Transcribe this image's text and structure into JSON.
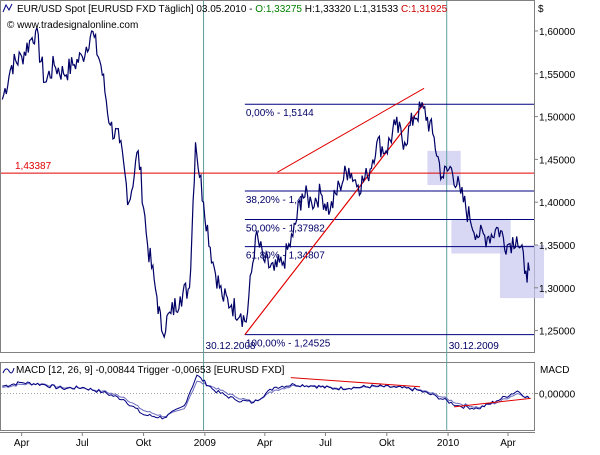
{
  "header": {
    "instrument": "EUR/USD Spot [EURUSD FXD",
    "period": "Täglich]",
    "date": "03.05.2010",
    "open_label": "O:1,33275",
    "high_label": "H:1,33320",
    "low_label": "L:1,31533",
    "close_label": "C:1,31925",
    "currency_symbol": "$"
  },
  "watermark": "© www.tradesignalonline.com",
  "colors": {
    "price_line": "#000066",
    "fib_line": "#000080",
    "red_line": "#e00000",
    "vertical_line": "#5f9ea0",
    "highlight": "#c8c8f0",
    "open_green": "#008000",
    "close_red": "#cc0000",
    "macd_main": "#000080",
    "macd_trigger": "#6a6ac0"
  },
  "chart_data": [
    {
      "type": "line",
      "title": "EUR/USD Spot [EURUSD FXD Täglich]",
      "x_ticks": [
        "Apr",
        "Jul",
        "Okt",
        "2009",
        "Apr",
        "Jul",
        "Okt",
        "2010",
        "Apr"
      ],
      "x_range": [
        "2008-03-01",
        "2010-05-10"
      ],
      "y_ticks": [
        "1,60000",
        "1,55000",
        "1,50000",
        "1,45000",
        "1,40000",
        "1,35000",
        "1,30000",
        "1,25000"
      ],
      "ylim": [
        1.225,
        1.635
      ],
      "grid": false,
      "series": [
        {
          "x": [
            "2008-03-03",
            "2008-03-17",
            "2008-04-01",
            "2008-04-15",
            "2008-04-22",
            "2008-05-06",
            "2008-05-20",
            "2008-06-03",
            "2008-06-17",
            "2008-07-01",
            "2008-07-15",
            "2008-07-29",
            "2008-08-12",
            "2008-08-26",
            "2008-09-09",
            "2008-09-23",
            "2008-10-07",
            "2008-10-21",
            "2008-10-28",
            "2008-11-11",
            "2008-11-25",
            "2008-12-09",
            "2008-12-18",
            "2008-12-30",
            "2009-01-13",
            "2009-01-27",
            "2009-02-10",
            "2009-02-24",
            "2009-03-04",
            "2009-03-18",
            "2009-04-01",
            "2009-04-15",
            "2009-04-29",
            "2009-05-13",
            "2009-05-27",
            "2009-06-10",
            "2009-06-24",
            "2009-07-08",
            "2009-07-22",
            "2009-08-05",
            "2009-08-19",
            "2009-09-02",
            "2009-09-16",
            "2009-09-30",
            "2009-10-14",
            "2009-10-28",
            "2009-11-11",
            "2009-11-25",
            "2009-12-09",
            "2009-12-23",
            "2010-01-06",
            "2010-01-20",
            "2010-02-03",
            "2010-02-17",
            "2010-03-03",
            "2010-03-17",
            "2010-03-31",
            "2010-04-14",
            "2010-04-28",
            "2010-05-03"
          ],
          "values": [
            1.52,
            1.56,
            1.57,
            1.59,
            1.6,
            1.54,
            1.56,
            1.55,
            1.56,
            1.57,
            1.6,
            1.56,
            1.49,
            1.47,
            1.4,
            1.46,
            1.35,
            1.29,
            1.25,
            1.27,
            1.29,
            1.3,
            1.47,
            1.4,
            1.33,
            1.29,
            1.28,
            1.27,
            1.26,
            1.36,
            1.33,
            1.32,
            1.33,
            1.36,
            1.41,
            1.4,
            1.41,
            1.39,
            1.42,
            1.44,
            1.42,
            1.43,
            1.47,
            1.46,
            1.49,
            1.47,
            1.5,
            1.51,
            1.48,
            1.43,
            1.44,
            1.41,
            1.38,
            1.36,
            1.36,
            1.37,
            1.35,
            1.36,
            1.32,
            1.32
          ]
        }
      ],
      "horizontal_line": {
        "value": 1.43387,
        "label": "1,43387"
      },
      "fibonacci": [
        {
          "label": "0,00% - 1,5144",
          "value": 1.5144
        },
        {
          "label": "38,20% - 1,4",
          "value": 1.413
        },
        {
          "label": "50,00% - 1,37982",
          "value": 1.37982
        },
        {
          "label": "61,80% - 1,34807",
          "value": 1.34807
        },
        {
          "label": "100,00% - 1,24525",
          "value": 1.24525
        }
      ],
      "trend_channel": [
        {
          "from": [
            "2009-03-02",
            1.24525
          ],
          "to": [
            "2009-11-25",
            1.5144
          ]
        },
        {
          "from": [
            "2009-03-02",
            1.24525
          ],
          "to": [
            "2009-11-26",
            1.515
          ]
        },
        {
          "from": [
            "2009-04-20",
            1.435
          ],
          "to": [
            "2009-11-26",
            1.533
          ]
        }
      ],
      "vertical_markers": [
        {
          "date": "2008-12-30",
          "label": "30.12.2008"
        },
        {
          "date": "2009-12-30",
          "label": "30.12.2009"
        }
      ],
      "highlight_boxes": [
        {
          "x0": "2009-12-01",
          "x1": "2010-01-20",
          "y0": 1.42,
          "y1": 1.46
        },
        {
          "x0": "2010-01-06",
          "x1": "2010-04-05",
          "y0": 1.34,
          "y1": 1.38
        },
        {
          "x0": "2010-03-20",
          "x1": "2010-05-25",
          "y0": 1.288,
          "y1": 1.35
        }
      ]
    },
    {
      "type": "line",
      "title": "MACD [12, 26, 9] -0,00844 Trigger -0,00653 [EURUSD FXD]",
      "axis_label": "MACD",
      "y_ticks": [
        "0,00000"
      ],
      "ylim": [
        -0.06,
        0.05
      ],
      "series": [
        {
          "x": [
            "2008-03-03",
            "2008-04-01",
            "2008-05-01",
            "2008-06-01",
            "2008-07-01",
            "2008-08-01",
            "2008-09-01",
            "2008-10-01",
            "2008-11-01",
            "2008-12-01",
            "2008-12-20",
            "2009-01-15",
            "2009-02-15",
            "2009-03-15",
            "2009-04-15",
            "2009-05-15",
            "2009-06-15",
            "2009-07-15",
            "2009-08-15",
            "2009-09-15",
            "2009-10-15",
            "2009-11-15",
            "2009-12-15",
            "2010-01-15",
            "2010-02-15",
            "2010-03-15",
            "2010-04-15",
            "2010-05-03"
          ],
          "values": [
            0.012,
            0.018,
            0.015,
            0.008,
            0.01,
            0.002,
            -0.01,
            -0.035,
            -0.04,
            -0.02,
            0.03,
            0.005,
            -0.01,
            -0.015,
            0.01,
            0.015,
            0.012,
            0.008,
            0.01,
            0.012,
            0.01,
            0.006,
            -0.005,
            -0.02,
            -0.025,
            -0.012,
            0.004,
            -0.00844
          ]
        },
        {
          "x": [
            "2008-03-03",
            "2008-04-01",
            "2008-05-01",
            "2008-06-01",
            "2008-07-01",
            "2008-08-01",
            "2008-09-01",
            "2008-10-01",
            "2008-11-01",
            "2008-12-01",
            "2008-12-20",
            "2009-01-15",
            "2009-02-15",
            "2009-03-15",
            "2009-04-15",
            "2009-05-15",
            "2009-06-15",
            "2009-07-15",
            "2009-08-15",
            "2009-09-15",
            "2009-10-15",
            "2009-11-15",
            "2009-12-15",
            "2010-01-15",
            "2010-02-15",
            "2010-03-15",
            "2010-04-15",
            "2010-05-03"
          ],
          "values": [
            0.01,
            0.015,
            0.016,
            0.01,
            0.009,
            0.004,
            -0.006,
            -0.028,
            -0.038,
            -0.025,
            0.02,
            0.01,
            -0.005,
            -0.014,
            0.005,
            0.013,
            0.013,
            0.009,
            0.009,
            0.011,
            0.011,
            0.007,
            -0.002,
            -0.016,
            -0.023,
            -0.015,
            0.0,
            -0.00653
          ]
        }
      ],
      "trend_lines": [
        {
          "from": [
            "2009-05-10",
            0.026
          ],
          "to": [
            "2009-11-20",
            0.011
          ]
        },
        {
          "from": [
            "2010-01-10",
            -0.022
          ],
          "to": [
            "2010-05-05",
            -0.008
          ]
        }
      ]
    }
  ]
}
